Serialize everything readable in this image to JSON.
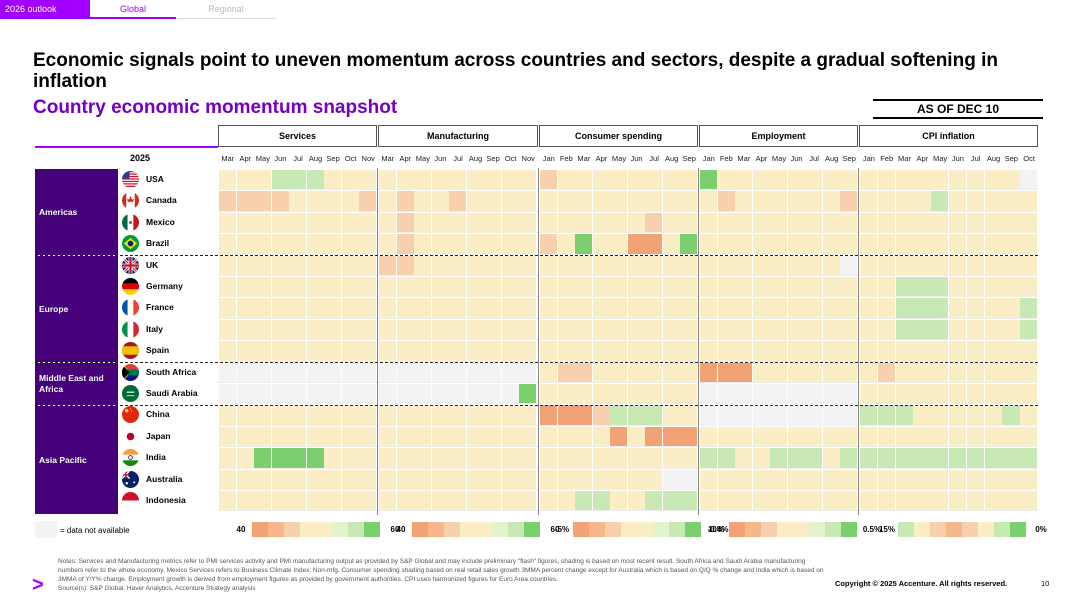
{
  "tabs": [
    {
      "label": "2026 outlook"
    },
    {
      "label": "Global"
    },
    {
      "label": "Regional"
    }
  ],
  "headline": "Economic signals point to uneven momentum across countries and sectors, despite a gradual softening in inflation",
  "subheadline": "Country economic momentum snapshot",
  "as_of": "AS OF DEC 10",
  "year_label": "2025",
  "colors": {
    "brand_purple": "#a100ff",
    "deep_purple": "#46007a",
    "strong_positive": "#7ccf6e",
    "mild_positive": "#c8e9b4",
    "neutral": "#fbeec6",
    "mild_negative": "#f8d0ad",
    "strong_negative": "#f2a274",
    "not_available": "#f3f3f3"
  },
  "sections": [
    {
      "label": "Services",
      "months": [
        "Mar",
        "Apr",
        "May",
        "Jun",
        "Jul",
        "Aug",
        "Sep",
        "Oct",
        "Nov"
      ],
      "scale_min": "40",
      "scale_max": "60"
    },
    {
      "label": "Manufacturing",
      "months": [
        "Mar",
        "Apr",
        "May",
        "Jun",
        "Jul",
        "Aug",
        "Sep",
        "Oct",
        "Nov"
      ],
      "scale_min": "40",
      "scale_max": "60"
    },
    {
      "label": "Consumer spending",
      "months": [
        "Jan",
        "Feb",
        "Mar",
        "Apr",
        "May",
        "Jun",
        "Jul",
        "Aug",
        "Sep"
      ],
      "scale_min": "-5%",
      "scale_max": "10%"
    },
    {
      "label": "Employment",
      "months": [
        "Jan",
        "Feb",
        "Mar",
        "Apr",
        "May",
        "Jun",
        "Jul",
        "Aug",
        "Sep"
      ],
      "scale_min": "-0.4%",
      "scale_max": "0.5%"
    },
    {
      "label": "CPI inflation",
      "months": [
        "Jan",
        "Feb",
        "Mar",
        "Apr",
        "May",
        "Jun",
        "Jul",
        "Aug",
        "Sep",
        "Oct"
      ],
      "scale_min": "15%",
      "scale_max": "0%"
    }
  ],
  "regions": [
    {
      "label": "Americas",
      "count": 4
    },
    {
      "label": "Europe",
      "count": 5
    },
    {
      "label": "Middle East and Africa",
      "count": 2
    },
    {
      "label": "Asia Pacific",
      "count": 5
    }
  ],
  "countries": [
    {
      "name": "USA",
      "flag": "us-flag-icon"
    },
    {
      "name": "Canada",
      "flag": "canada-flag-icon"
    },
    {
      "name": "Mexico",
      "flag": "mexico-flag-icon"
    },
    {
      "name": "Brazil",
      "flag": "brazil-flag-icon"
    },
    {
      "name": "UK",
      "flag": "uk-flag-icon"
    },
    {
      "name": "Germany",
      "flag": "germany-flag-icon"
    },
    {
      "name": "France",
      "flag": "france-flag-icon"
    },
    {
      "name": "Italy",
      "flag": "italy-flag-icon"
    },
    {
      "name": "Spain",
      "flag": "spain-flag-icon"
    },
    {
      "name": "South Africa",
      "flag": "south-africa-flag-icon"
    },
    {
      "name": "Saudi Arabia",
      "flag": "saudi-arabia-flag-icon"
    },
    {
      "name": "China",
      "flag": "china-flag-icon"
    },
    {
      "name": "Japan",
      "flag": "japan-flag-icon"
    },
    {
      "name": "India",
      "flag": "india-flag-icon"
    },
    {
      "name": "Australia",
      "flag": "australia-flag-icon"
    },
    {
      "name": "Indonesia",
      "flag": "indonesia-flag-icon"
    }
  ],
  "heatmap_levels": "0 = not available, 1 = strong positive, 2 = mild positive, 3 = neutral, 4 = mild negative, 5 = strong negative",
  "heatmap": [
    [
      [
        3,
        3,
        3,
        2,
        2,
        2,
        3,
        3,
        3
      ],
      [
        3,
        3,
        3,
        3,
        3,
        3,
        3,
        3,
        3
      ],
      [
        4,
        3,
        3,
        3,
        3,
        3,
        3,
        3,
        3
      ],
      [
        1,
        3,
        3,
        3,
        3,
        3,
        3,
        3,
        3
      ],
      [
        3,
        3,
        3,
        3,
        3,
        3,
        3,
        3,
        3,
        0
      ]
    ],
    [
      [
        4,
        4,
        4,
        4,
        3,
        3,
        3,
        3,
        4
      ],
      [
        3,
        4,
        3,
        3,
        4,
        3,
        3,
        3,
        3
      ],
      [
        3,
        3,
        3,
        3,
        3,
        3,
        3,
        3,
        3
      ],
      [
        3,
        4,
        3,
        3,
        3,
        3,
        3,
        3,
        4
      ],
      [
        3,
        3,
        3,
        3,
        2,
        3,
        3,
        3,
        3,
        3
      ]
    ],
    [
      [
        3,
        3,
        3,
        3,
        3,
        3,
        3,
        3,
        3
      ],
      [
        3,
        4,
        3,
        3,
        3,
        3,
        3,
        3,
        3
      ],
      [
        3,
        3,
        3,
        3,
        3,
        3,
        4,
        3,
        3
      ],
      [
        3,
        3,
        3,
        3,
        3,
        3,
        3,
        3,
        3
      ],
      [
        3,
        3,
        3,
        3,
        3,
        3,
        3,
        3,
        3,
        3
      ]
    ],
    [
      [
        3,
        3,
        3,
        3,
        3,
        3,
        3,
        3,
        3
      ],
      [
        3,
        4,
        3,
        3,
        3,
        3,
        3,
        3,
        3
      ],
      [
        4,
        3,
        1,
        3,
        3,
        5,
        5,
        3,
        1
      ],
      [
        3,
        3,
        3,
        3,
        3,
        3,
        3,
        3,
        3
      ],
      [
        3,
        3,
        3,
        3,
        3,
        3,
        3,
        3,
        3,
        3
      ]
    ],
    [
      [
        3,
        3,
        3,
        3,
        3,
        3,
        3,
        3,
        3
      ],
      [
        4,
        4,
        3,
        3,
        3,
        3,
        3,
        3,
        3
      ],
      [
        3,
        3,
        3,
        3,
        3,
        3,
        3,
        3,
        3
      ],
      [
        3,
        3,
        3,
        3,
        3,
        3,
        3,
        3,
        0
      ],
      [
        3,
        3,
        3,
        3,
        3,
        3,
        3,
        3,
        3,
        3
      ]
    ],
    [
      [
        3,
        3,
        3,
        3,
        3,
        3,
        3,
        3,
        3
      ],
      [
        3,
        3,
        3,
        3,
        3,
        3,
        3,
        3,
        3
      ],
      [
        3,
        3,
        3,
        3,
        3,
        3,
        3,
        3,
        3
      ],
      [
        3,
        3,
        3,
        3,
        3,
        3,
        3,
        3,
        3
      ],
      [
        3,
        3,
        2,
        2,
        2,
        3,
        3,
        3,
        3,
        3
      ]
    ],
    [
      [
        3,
        3,
        3,
        3,
        3,
        3,
        3,
        3,
        3
      ],
      [
        3,
        3,
        3,
        3,
        3,
        3,
        3,
        3,
        3
      ],
      [
        3,
        3,
        3,
        3,
        3,
        3,
        3,
        3,
        3
      ],
      [
        3,
        3,
        3,
        3,
        3,
        3,
        3,
        3,
        3
      ],
      [
        3,
        3,
        2,
        2,
        2,
        3,
        3,
        3,
        3,
        2
      ]
    ],
    [
      [
        3,
        3,
        3,
        3,
        3,
        3,
        3,
        3,
        3
      ],
      [
        3,
        3,
        3,
        3,
        3,
        3,
        3,
        3,
        3
      ],
      [
        3,
        3,
        3,
        3,
        3,
        3,
        3,
        3,
        3
      ],
      [
        3,
        3,
        3,
        3,
        3,
        3,
        3,
        3,
        3
      ],
      [
        3,
        3,
        2,
        2,
        2,
        3,
        3,
        3,
        3,
        2
      ]
    ],
    [
      [
        3,
        3,
        3,
        3,
        3,
        3,
        3,
        3,
        3
      ],
      [
        3,
        3,
        3,
        3,
        3,
        3,
        3,
        3,
        3
      ],
      [
        3,
        3,
        3,
        3,
        3,
        3,
        3,
        3,
        3
      ],
      [
        3,
        3,
        3,
        3,
        3,
        3,
        3,
        3,
        3
      ],
      [
        3,
        3,
        3,
        3,
        3,
        3,
        3,
        3,
        3,
        3
      ]
    ],
    [
      [
        0,
        0,
        0,
        0,
        0,
        0,
        0,
        0,
        0
      ],
      [
        0,
        0,
        0,
        0,
        0,
        0,
        0,
        0,
        0
      ],
      [
        3,
        4,
        4,
        3,
        3,
        3,
        3,
        3,
        3
      ],
      [
        5,
        5,
        5,
        3,
        3,
        3,
        3,
        3,
        3
      ],
      [
        3,
        4,
        3,
        3,
        3,
        3,
        3,
        3,
        3,
        3
      ]
    ],
    [
      [
        0,
        0,
        0,
        0,
        0,
        0,
        0,
        0,
        0
      ],
      [
        0,
        0,
        0,
        0,
        0,
        0,
        0,
        0,
        1
      ],
      [
        3,
        3,
        3,
        3,
        3,
        3,
        3,
        3,
        3
      ],
      [
        0,
        0,
        0,
        0,
        0,
        0,
        0,
        0,
        0
      ],
      [
        3,
        3,
        3,
        3,
        3,
        3,
        3,
        3,
        3,
        3
      ]
    ],
    [
      [
        3,
        3,
        3,
        3,
        3,
        3,
        3,
        3,
        3
      ],
      [
        3,
        3,
        3,
        3,
        3,
        3,
        3,
        3,
        3
      ],
      [
        5,
        5,
        5,
        4,
        2,
        2,
        2,
        3,
        3
      ],
      [
        0,
        0,
        0,
        0,
        0,
        0,
        0,
        0,
        0
      ],
      [
        2,
        2,
        2,
        3,
        3,
        3,
        3,
        3,
        2,
        3
      ]
    ],
    [
      [
        3,
        3,
        3,
        3,
        3,
        3,
        3,
        3,
        3
      ],
      [
        3,
        3,
        3,
        3,
        3,
        3,
        3,
        3,
        3
      ],
      [
        3,
        3,
        3,
        3,
        5,
        3,
        5,
        5,
        5
      ],
      [
        3,
        3,
        3,
        3,
        3,
        3,
        3,
        3,
        3
      ],
      [
        3,
        3,
        3,
        3,
        3,
        3,
        3,
        3,
        3,
        3
      ]
    ],
    [
      [
        3,
        3,
        1,
        1,
        1,
        1,
        3,
        3,
        3
      ],
      [
        3,
        3,
        3,
        3,
        3,
        3,
        3,
        3,
        3
      ],
      [
        3,
        3,
        3,
        3,
        3,
        3,
        3,
        3,
        3
      ],
      [
        2,
        2,
        3,
        3,
        2,
        2,
        2,
        3,
        2
      ],
      [
        2,
        2,
        2,
        2,
        2,
        2,
        2,
        2,
        2,
        2
      ]
    ],
    [
      [
        3,
        3,
        3,
        3,
        3,
        3,
        3,
        3,
        3
      ],
      [
        3,
        3,
        3,
        3,
        3,
        3,
        3,
        3,
        3
      ],
      [
        3,
        3,
        3,
        3,
        3,
        3,
        3,
        0,
        0
      ],
      [
        3,
        3,
        3,
        3,
        3,
        3,
        3,
        3,
        3
      ],
      [
        3,
        3,
        3,
        3,
        3,
        3,
        3,
        3,
        3,
        3
      ]
    ],
    [
      [
        3,
        3,
        3,
        3,
        3,
        3,
        3,
        3,
        3
      ],
      [
        3,
        3,
        3,
        3,
        3,
        3,
        3,
        3,
        3
      ],
      [
        3,
        3,
        2,
        2,
        3,
        3,
        2,
        2,
        2
      ],
      [
        3,
        3,
        3,
        3,
        3,
        3,
        3,
        3,
        3
      ],
      [
        3,
        3,
        3,
        3,
        3,
        3,
        3,
        3,
        3,
        3
      ]
    ]
  ],
  "legend": {
    "not_available_label": "= data not available"
  },
  "notes": [
    "Notes: Services and Manufacturing metrics refer to PMI services activity and PMI manufacturing output as provided by S&P Global and may include preliminary \"flash\" figures, shading is based on most recent result. South Africa and Saudi Arabia manufacturing",
    "numbers refer to the whole economy. Mexico Services refers to Business Climate Index: Non-mfg. Consumer spending shading based on real retail sales growth 3MMA percent change except for Australia which is based on Q/Q % change and India which is based on",
    "3MMA of Y/Y% change. Employment growth is derived from employment figures as provided by government authorities. CPI uses harmonized figures for Euro Area countries.",
    "Source(s): S&P Global, Haver Analytics, Accenture Strategy analysis"
  ],
  "copyright": "Copyright © 2025 Accenture. All rights reserved.",
  "page_number": "10",
  "brand_icon": "greater-than-brand-icon"
}
